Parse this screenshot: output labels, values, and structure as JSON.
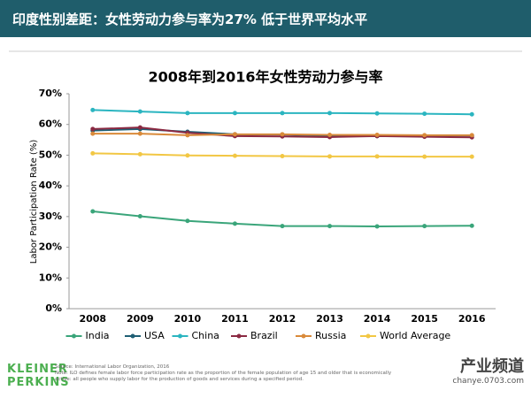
{
  "header": {
    "title": "印度性别差距：女性劳动力参与率为27% 低于世界平均水平"
  },
  "chart_data": {
    "type": "line",
    "title": "2008年到2016年女性劳动力参与率",
    "y_label": "Labor Participation Rate (%)",
    "categories": [
      "2008",
      "2009",
      "2010",
      "2011",
      "2012",
      "2013",
      "2014",
      "2015",
      "2016"
    ],
    "series": [
      {
        "name": "India",
        "color": "#3aa57a",
        "values": [
          31.7,
          30.1,
          28.6,
          27.7,
          26.9,
          26.9,
          26.8,
          26.9,
          27.0
        ]
      },
      {
        "name": "USA",
        "color": "#1f5f74",
        "values": [
          58.0,
          58.5,
          57.6,
          56.8,
          56.7,
          56.3,
          56.2,
          56.4,
          56.4
        ]
      },
      {
        "name": "China",
        "color": "#2bb5c0",
        "values": [
          64.7,
          64.2,
          63.7,
          63.7,
          63.7,
          63.7,
          63.6,
          63.5,
          63.3
        ]
      },
      {
        "name": "Brazil",
        "color": "#8b2942",
        "values": [
          58.5,
          59.0,
          57.3,
          56.2,
          56.1,
          55.9,
          56.2,
          56.0,
          55.8
        ]
      },
      {
        "name": "Russia",
        "color": "#d98a3a",
        "values": [
          57.0,
          57.0,
          56.5,
          56.8,
          56.8,
          56.6,
          56.6,
          56.5,
          56.5
        ]
      },
      {
        "name": "World Average",
        "color": "#f2c744",
        "values": [
          50.6,
          50.3,
          49.9,
          49.8,
          49.7,
          49.6,
          49.6,
          49.5,
          49.5
        ]
      }
    ],
    "ylim": [
      0,
      70
    ],
    "yticks": [
      {
        "value": 0,
        "label": "0%"
      },
      {
        "value": 10,
        "label": "10%"
      },
      {
        "value": 20,
        "label": "20%"
      },
      {
        "value": 30,
        "label": "30%"
      },
      {
        "value": 40,
        "label": "40%"
      },
      {
        "value": 50,
        "label": "50%"
      },
      {
        "value": 60,
        "label": "60%"
      },
      {
        "value": 70,
        "label": "70%"
      }
    ],
    "grid": false,
    "legend": "bottom"
  },
  "footer": {
    "logo": [
      "KLEINER",
      "PERKINS"
    ],
    "source": "Source: International Labor Organization, 2016",
    "note": "Note: ILO defines female labor force participation rate as the proportion of the female population of age 15 and older that is economically active: all people who supply labor for the production of goods and services during a specified period."
  },
  "watermark": {
    "name": "产业频道",
    "url": "chanye.0703.com"
  }
}
